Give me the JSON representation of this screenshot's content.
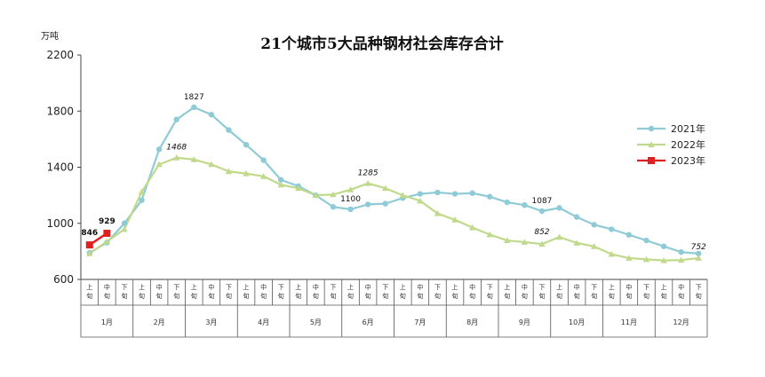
{
  "chart_data": {
    "type": "line",
    "title": "21个城市5大品种钢材社会库存合计",
    "unit_label": "万吨",
    "ylim": [
      600,
      2200
    ],
    "yticks": [
      600,
      1000,
      1400,
      1800,
      2200
    ],
    "ytick_labels": [
      "600",
      "1000",
      "1400",
      "1800",
      "2200"
    ],
    "grid": false,
    "legend_position": "right",
    "period_labels": [
      "上旬",
      "中旬",
      "下旬"
    ],
    "months": [
      "1月",
      "2月",
      "3月",
      "4月",
      "5月",
      "6月",
      "7月",
      "8月",
      "9月",
      "10月",
      "11月",
      "12月"
    ],
    "series": [
      {
        "name": "2021年",
        "color": "#8fcbd6",
        "marker": "circle",
        "values": [
          790,
          862,
          1000,
          1165,
          1527,
          1740,
          1827,
          1775,
          1665,
          1560,
          1450,
          1310,
          1265,
          1200,
          1117,
          1100,
          1135,
          1140,
          1180,
          1210,
          1220,
          1210,
          1215,
          1190,
          1150,
          1130,
          1087,
          1110,
          1045,
          990,
          958,
          918,
          878,
          836,
          795,
          784
        ]
      },
      {
        "name": "2022年",
        "color": "#c0d98a",
        "marker": "triangle",
        "values": [
          785,
          870,
          958,
          1225,
          1420,
          1468,
          1455,
          1420,
          1370,
          1355,
          1335,
          1275,
          1250,
          1200,
          1205,
          1240,
          1285,
          1250,
          1200,
          1160,
          1070,
          1025,
          970,
          920,
          878,
          866,
          852,
          902,
          860,
          835,
          780,
          752,
          743,
          735,
          738,
          752
        ]
      },
      {
        "name": "2023年",
        "color": "#e02020",
        "marker": "square",
        "values": [
          846,
          929
        ]
      }
    ],
    "annotations": [
      {
        "series": "2023年",
        "index": 0,
        "text": "846",
        "bold": true,
        "italic": false
      },
      {
        "series": "2023年",
        "index": 1,
        "text": "929",
        "bold": true,
        "italic": false
      },
      {
        "series": "2021年",
        "index": 6,
        "text": "1827",
        "bold": false,
        "italic": false
      },
      {
        "series": "2022年",
        "index": 5,
        "text": "1468",
        "bold": false,
        "italic": true
      },
      {
        "series": "2021年",
        "index": 15,
        "text": "1100",
        "bold": false,
        "italic": false
      },
      {
        "series": "2022年",
        "index": 16,
        "text": "1285",
        "bold": false,
        "italic": true
      },
      {
        "series": "2021年",
        "index": 26,
        "text": "1087",
        "bold": false,
        "italic": false
      },
      {
        "series": "2022年",
        "index": 26,
        "text": "852",
        "bold": false,
        "italic": true
      },
      {
        "series": "2022年",
        "index": 35,
        "text": "752",
        "bold": false,
        "italic": true
      }
    ]
  }
}
